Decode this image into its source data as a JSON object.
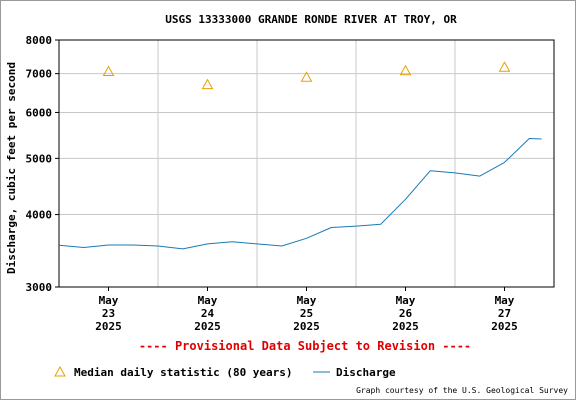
{
  "chart_data": {
    "type": "line",
    "title": "USGS 13333000 GRANDE RONDE RIVER AT TROY, OR",
    "ylabel": "Discharge, cubic feet per second",
    "xlabel": "",
    "y_scale": "log",
    "ylim": [
      3000,
      8000
    ],
    "y_ticks": [
      3000,
      4000,
      5000,
      6000,
      7000,
      8000
    ],
    "y_tick_labels": [
      "3000",
      "4000",
      "5000",
      "6000",
      "7000",
      "8000"
    ],
    "xlim": [
      "2025-05-22T12:00",
      "2025-05-27T12:00"
    ],
    "x_ticks": [
      {
        "time": "2025-05-23T00:00",
        "label": [
          "May",
          "23",
          "2025"
        ]
      },
      {
        "time": "2025-05-24T00:00",
        "label": [
          "May",
          "24",
          "2025"
        ]
      },
      {
        "time": "2025-05-25T00:00",
        "label": [
          "May",
          "25",
          "2025"
        ]
      },
      {
        "time": "2025-05-26T00:00",
        "label": [
          "May",
          "26",
          "2025"
        ]
      },
      {
        "time": "2025-05-27T00:00",
        "label": [
          "May",
          "27",
          "2025"
        ]
      }
    ],
    "grid": true,
    "legend_position": "bottom",
    "series": [
      {
        "name": "Median daily statistic (80 years)",
        "kind": "marker",
        "marker": "triangle",
        "color": "#e8a000",
        "points": [
          {
            "x": "2025-05-23T00:00",
            "y": 7060
          },
          {
            "x": "2025-05-24T00:00",
            "y": 6700
          },
          {
            "x": "2025-05-25T00:00",
            "y": 6900
          },
          {
            "x": "2025-05-26T00:00",
            "y": 7080
          },
          {
            "x": "2025-05-27T00:00",
            "y": 7180
          }
        ]
      },
      {
        "name": "Discharge",
        "kind": "line",
        "color": "#1a7ab5",
        "points": [
          {
            "x": "2025-05-22T12:00",
            "y": 3540
          },
          {
            "x": "2025-05-22T18:00",
            "y": 3510
          },
          {
            "x": "2025-05-23T00:00",
            "y": 3545
          },
          {
            "x": "2025-05-23T06:00",
            "y": 3545
          },
          {
            "x": "2025-05-23T12:00",
            "y": 3530
          },
          {
            "x": "2025-05-23T18:00",
            "y": 3490
          },
          {
            "x": "2025-05-24T00:00",
            "y": 3560
          },
          {
            "x": "2025-05-24T06:00",
            "y": 3590
          },
          {
            "x": "2025-05-24T12:00",
            "y": 3560
          },
          {
            "x": "2025-05-24T18:00",
            "y": 3530
          },
          {
            "x": "2025-05-25T00:00",
            "y": 3640
          },
          {
            "x": "2025-05-25T06:00",
            "y": 3800
          },
          {
            "x": "2025-05-25T12:00",
            "y": 3820
          },
          {
            "x": "2025-05-25T18:00",
            "y": 3850
          },
          {
            "x": "2025-05-26T00:00",
            "y": 4250
          },
          {
            "x": "2025-05-26T06:00",
            "y": 4760
          },
          {
            "x": "2025-05-26T12:00",
            "y": 4720
          },
          {
            "x": "2025-05-26T18:00",
            "y": 4660
          },
          {
            "x": "2025-05-27T00:00",
            "y": 4920
          },
          {
            "x": "2025-05-27T06:00",
            "y": 5410
          },
          {
            "x": "2025-05-27T09:00",
            "y": 5400
          }
        ]
      }
    ]
  },
  "provisional_note": "---- Provisional Data Subject to Revision ----",
  "credit": "Graph courtesy of the U.S. Geological Survey",
  "colors": {
    "provisional": "#e00000",
    "grid": "#c8c8c8",
    "marker": "#e8a000",
    "line": "#1a7ab5"
  }
}
